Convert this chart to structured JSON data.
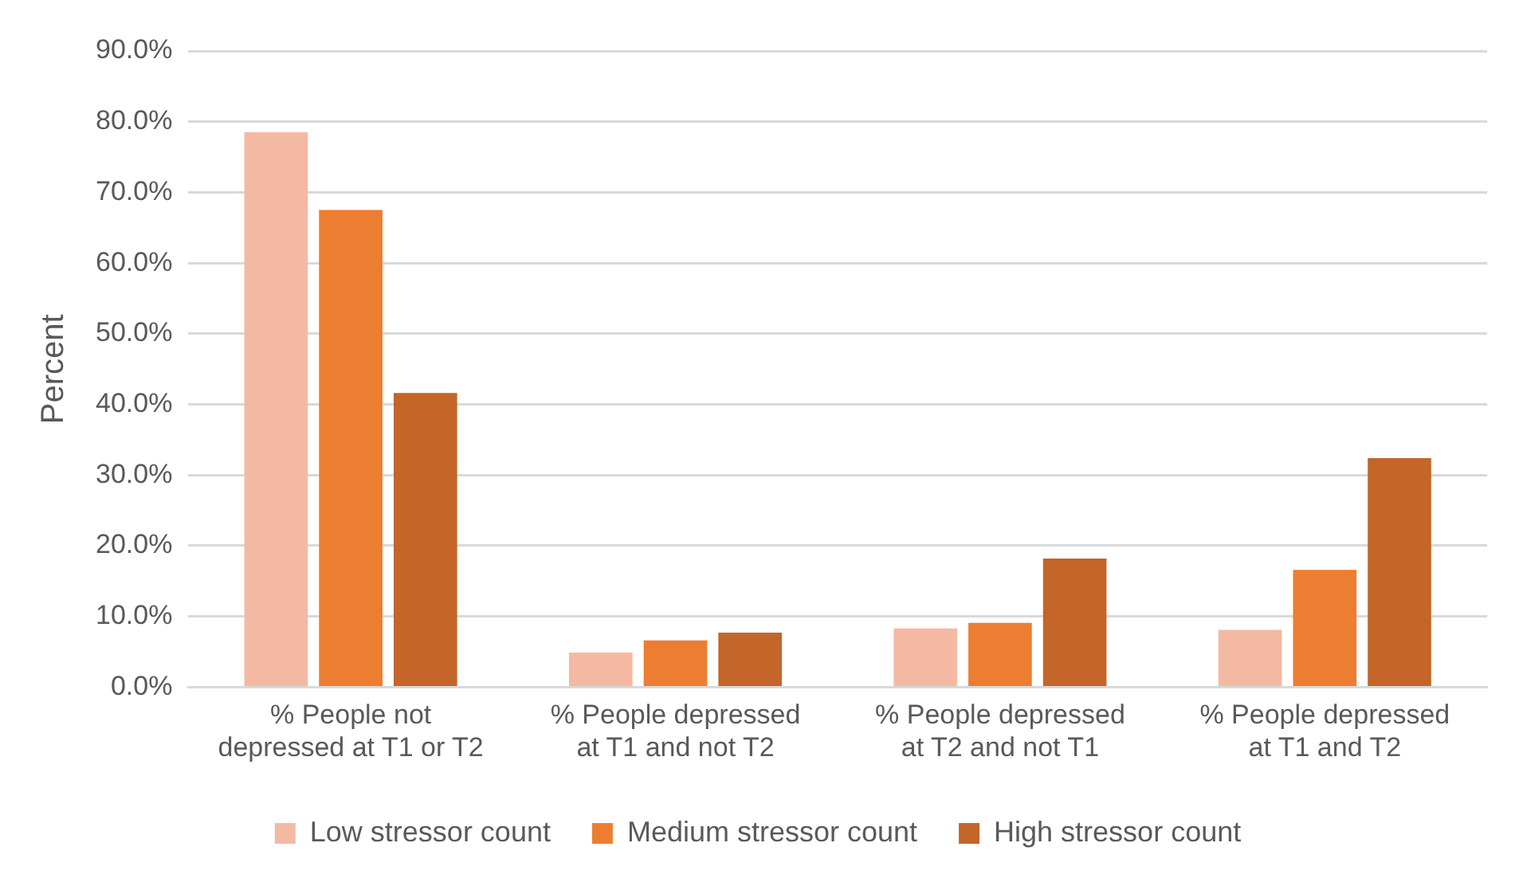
{
  "chart_data": {
    "type": "bar",
    "ylabel": "Percent",
    "categories": [
      "% People not depressed at T1 or T2",
      "% People depressed at T1 and not T2",
      "% People depressed at T2 and not T1",
      "% People depressed at T1 and T2"
    ],
    "series": [
      {
        "name": "Low stressor count",
        "color": "#f4b9a3",
        "values": [
          78.5,
          4.9,
          8.3,
          8.1
        ]
      },
      {
        "name": "Medium stressor count",
        "color": "#ed7d31",
        "values": [
          67.5,
          6.6,
          9.1,
          16.6
        ]
      },
      {
        "name": "High stressor count",
        "color": "#c4652a",
        "values": [
          41.6,
          7.7,
          18.2,
          32.4
        ]
      }
    ],
    "ylim": [
      0,
      90
    ],
    "yticks": [
      {
        "value": 0,
        "label": "0.0%"
      },
      {
        "value": 10,
        "label": "10.0%"
      },
      {
        "value": 20,
        "label": "20.0%"
      },
      {
        "value": 30,
        "label": "30.0%"
      },
      {
        "value": 40,
        "label": "40.0%"
      },
      {
        "value": 50,
        "label": "50.0%"
      },
      {
        "value": 60,
        "label": "60.0%"
      },
      {
        "value": 70,
        "label": "70.0%"
      },
      {
        "value": 80,
        "label": "80.0%"
      },
      {
        "value": 90,
        "label": "90.0%"
      }
    ],
    "grid": "y",
    "legend": "bottom"
  }
}
